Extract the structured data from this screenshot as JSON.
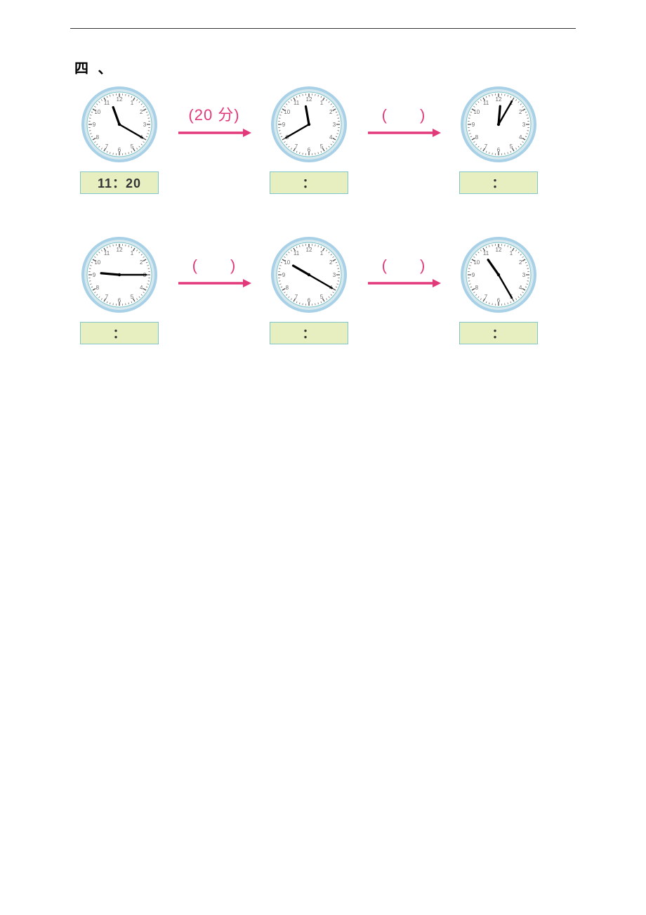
{
  "section_label": "四 、",
  "colors": {
    "clock_outer": "#a8d0e6",
    "clock_ring": "#7fc5c9",
    "clock_face": "#ffffff",
    "clock_tick": "#555555",
    "clock_num": "#6b6b6b",
    "hand": "#000000",
    "arrow": "#e2397a",
    "paren": "#e2397a",
    "box_bg": "#e7efc1",
    "box_border": "#7fc5c9",
    "hr": "#333333"
  },
  "fontsize": {
    "section": 20,
    "arrow_label": 22,
    "answer": 18,
    "clock_num": 8
  },
  "clock_geom": {
    "size": 110,
    "num_radius": 40,
    "minute_len": 38,
    "hour_len": 26
  },
  "rows": [
    {
      "cells": [
        {
          "type": "clock",
          "hour_angle": 340,
          "minute_angle": 120,
          "answer": "11：20"
        },
        {
          "type": "arrow",
          "label_inner": "20 分"
        },
        {
          "type": "clock",
          "hour_angle": 350,
          "minute_angle": 240,
          "answer": "："
        },
        {
          "type": "arrow",
          "label_inner": "　　"
        },
        {
          "type": "clock",
          "hour_angle": 5,
          "minute_angle": 30,
          "answer": "："
        }
      ]
    },
    {
      "cells": [
        {
          "type": "clock",
          "hour_angle": 275,
          "minute_angle": 90,
          "answer": "："
        },
        {
          "type": "arrow",
          "label_inner": "　　"
        },
        {
          "type": "clock",
          "hour_angle": 300,
          "minute_angle": 120,
          "answer": "："
        },
        {
          "type": "arrow",
          "label_inner": "　　"
        },
        {
          "type": "clock",
          "hour_angle": 325,
          "minute_angle": 150,
          "answer": "："
        }
      ]
    }
  ]
}
